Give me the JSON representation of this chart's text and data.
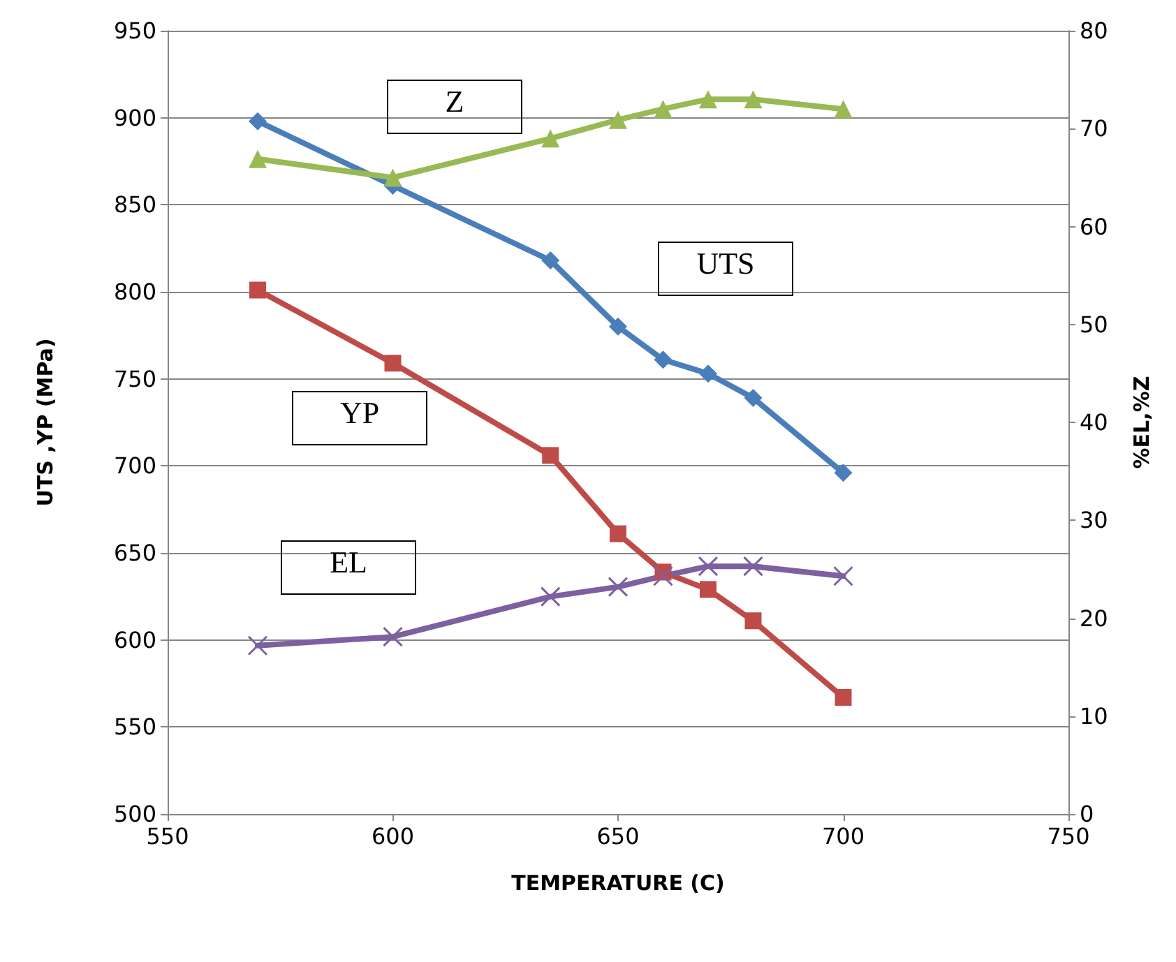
{
  "chart_data": {
    "type": "line",
    "xlabel": "TEMPERATURE (C)",
    "ylabel": "UTS ,YP (MPa)",
    "y2label": "%EL,%Z",
    "x": [
      570,
      600,
      635,
      650,
      660,
      670,
      680,
      700
    ],
    "series": [
      {
        "name": "UTS",
        "color": "#4a7ebb",
        "marker": "diamond",
        "values": [
          898,
          861,
          818,
          780,
          761,
          753,
          739,
          696
        ]
      },
      {
        "name": "YP",
        "color": "#be4b48",
        "marker": "square",
        "values": [
          801,
          759,
          706,
          661,
          639,
          629,
          611,
          567
        ]
      },
      {
        "name": "Z",
        "color": "#98b954",
        "marker": "triangle",
        "axis": "y2",
        "values": [
          66.9,
          65,
          69,
          70.9,
          72,
          73,
          73,
          72
        ]
      },
      {
        "name": "EL",
        "color": "#7d60a0",
        "marker": "cross",
        "axis": "y2",
        "values": [
          17.2,
          18.1,
          22.2,
          23.2,
          24.3,
          25.3,
          25.3,
          24.3
        ]
      }
    ],
    "xlim": [
      550,
      750
    ],
    "xticks": [
      550,
      600,
      650,
      700,
      750
    ],
    "ylim": [
      500,
      950
    ],
    "yticks": [
      500,
      550,
      600,
      650,
      700,
      750,
      800,
      850,
      900,
      950
    ],
    "y2lim": [
      0,
      80
    ],
    "y2ticks": [
      0,
      10,
      20,
      30,
      40,
      50,
      60,
      70,
      80
    ],
    "grid": "y",
    "legend": false,
    "line_style": "solid"
  }
}
